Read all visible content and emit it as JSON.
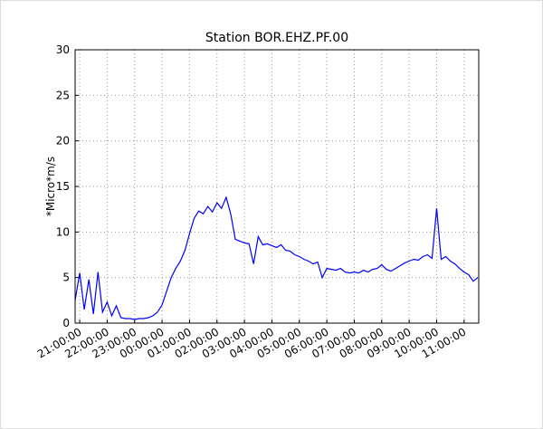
{
  "chart_data": {
    "type": "line",
    "title": "Station BOR.EHZ.PF.00",
    "y_label": "*Micro*m/s",
    "x": [
      "20:50:00",
      "21:00:00",
      "21:10:00",
      "21:20:00",
      "21:30:00",
      "21:40:00",
      "21:50:00",
      "22:00:00",
      "22:10:00",
      "22:20:00",
      "22:30:00",
      "22:40:00",
      "22:50:00",
      "23:00:00",
      "23:10:00",
      "23:20:00",
      "23:30:00",
      "23:40:00",
      "23:50:00",
      "00:00:00",
      "00:10:00",
      "00:20:00",
      "00:30:00",
      "00:40:00",
      "00:50:00",
      "01:00:00",
      "01:10:00",
      "01:20:00",
      "01:30:00",
      "01:40:00",
      "01:50:00",
      "02:00:00",
      "02:10:00",
      "02:20:00",
      "02:30:00",
      "02:40:00",
      "02:50:00",
      "03:00:00",
      "03:10:00",
      "03:20:00",
      "03:30:00",
      "03:40:00",
      "03:50:00",
      "04:00:00",
      "04:10:00",
      "04:20:00",
      "04:30:00",
      "04:40:00",
      "04:50:00",
      "05:00:00",
      "05:10:00",
      "05:20:00",
      "05:30:00",
      "05:40:00",
      "05:50:00",
      "06:00:00",
      "06:10:00",
      "06:20:00",
      "06:30:00",
      "06:40:00",
      "06:50:00",
      "07:00:00",
      "07:10:00",
      "07:20:00",
      "07:30:00",
      "07:40:00",
      "07:50:00",
      "08:00:00",
      "08:10:00",
      "08:20:00",
      "08:30:00",
      "08:40:00",
      "08:50:00",
      "09:00:00",
      "09:10:00",
      "09:20:00",
      "09:30:00",
      "09:40:00",
      "09:50:00",
      "10:00:00",
      "10:10:00",
      "10:20:00",
      "10:30:00",
      "10:40:00",
      "10:50:00",
      "11:00:00",
      "11:10:00",
      "11:20:00",
      "11:30:00"
    ],
    "series": [
      {
        "name": "BOR.EHZ.PF.00",
        "color": "#0000ff",
        "values": [
          2.5,
          5.5,
          1.5,
          4.8,
          1.0,
          5.6,
          1.2,
          2.3,
          0.8,
          1.9,
          0.6,
          0.5,
          0.5,
          0.4,
          0.5,
          0.5,
          0.6,
          0.8,
          1.2,
          2.0,
          3.5,
          5.0,
          6.0,
          6.8,
          8.0,
          9.8,
          11.5,
          12.3,
          12.0,
          12.8,
          12.2,
          13.2,
          12.6,
          13.8,
          12.0,
          9.2,
          9.0,
          8.8,
          8.7,
          6.5,
          9.5,
          8.6,
          8.7,
          8.5,
          8.3,
          8.6,
          8.0,
          7.9,
          7.5,
          7.3,
          7.0,
          6.8,
          6.5,
          6.7,
          5.0,
          6.0,
          5.9,
          5.8,
          6.0,
          5.6,
          5.5,
          5.6,
          5.5,
          5.8,
          5.6,
          5.9,
          6.0,
          6.4,
          5.9,
          5.7,
          6.0,
          6.3,
          6.6,
          6.8,
          7.0,
          6.9,
          7.3,
          7.5,
          7.1,
          12.6,
          7.0,
          7.3,
          6.8,
          6.5,
          6.0,
          5.6,
          5.3,
          4.6,
          5.0
        ]
      }
    ],
    "xlim": [
      "20:50:00",
      "11:32:00"
    ],
    "xticks": [
      "21:00:00",
      "22:00:00",
      "23:00:00",
      "00:00:00",
      "01:00:00",
      "02:00:00",
      "03:00:00",
      "04:00:00",
      "05:00:00",
      "06:00:00",
      "07:00:00",
      "08:00:00",
      "09:00:00",
      "10:00:00",
      "11:00:00"
    ],
    "ylim": [
      0,
      30
    ],
    "yticks": [
      0,
      5,
      10,
      15,
      20,
      25,
      30
    ],
    "grid": true
  }
}
